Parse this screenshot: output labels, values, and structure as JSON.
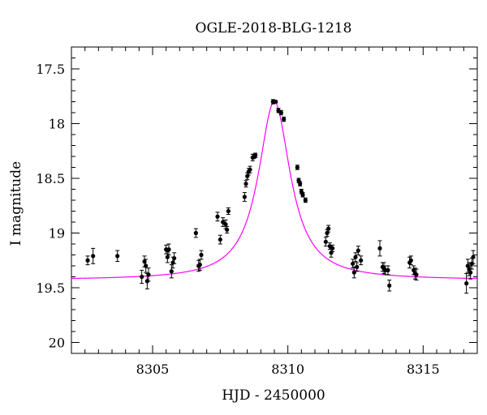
{
  "chart_data": {
    "type": "scatter",
    "title": "OGLE-2018-BLG-1218",
    "xlabel": "HJD - 2450000",
    "ylabel": "I magnitude",
    "xlim": [
      8302.0,
      8317.0
    ],
    "ylim": [
      20.1,
      17.3
    ],
    "y_inverted": true,
    "x_ticks": [
      8305,
      8310,
      8315
    ],
    "x_tick_labels": [
      "8305",
      "8310",
      "8315"
    ],
    "y_ticks": [
      17.5,
      18,
      18.5,
      19,
      19.5,
      20
    ],
    "y_tick_labels": [
      "17.5",
      "18",
      "18.5",
      "19",
      "19.5",
      "20"
    ],
    "grid": false,
    "legend": "none",
    "colors": {
      "data": "#000000",
      "model": "#ff00ff",
      "axes": "#000000"
    },
    "model": {
      "kind": "point-lens microlensing fit",
      "t0": 8309.5,
      "peak_mag": 17.8,
      "baseline_mag": 19.43
    },
    "series": [
      {
        "x": [
          8302.6,
          8302.8,
          8303.7,
          8304.6,
          8304.7,
          8304.75,
          8304.8,
          8304.85,
          8305.5,
          8305.55,
          8305.6,
          8305.7,
          8305.75,
          8305.8,
          8306.6,
          8306.7,
          8306.75,
          8306.8,
          8307.4,
          8307.5,
          8307.6,
          8307.7,
          8307.75,
          8307.8,
          8308.4,
          8308.45,
          8308.5,
          8308.55,
          8308.6,
          8308.7,
          8308.75,
          8308.8,
          8309.45,
          8309.55,
          8309.65,
          8309.75,
          8309.85,
          8310.35,
          8310.4,
          8310.45,
          8310.5,
          8310.55,
          8310.65,
          8311.4,
          8311.45,
          8311.5,
          8311.55,
          8311.6,
          8311.65,
          8312.4,
          8312.45,
          8312.5,
          8312.55,
          8312.6,
          8312.7,
          8313.4,
          8313.5,
          8313.55,
          8313.6,
          8313.7,
          8313.75,
          8314.5,
          8314.55,
          8314.65,
          8314.7,
          8314.75,
          8316.6,
          8316.65,
          8316.7,
          8316.75,
          8316.8,
          8316.85
        ],
        "y": [
          19.25,
          19.21,
          19.21,
          19.4,
          19.26,
          19.3,
          19.44,
          19.38,
          19.15,
          19.22,
          19.15,
          19.35,
          19.27,
          19.23,
          19.0,
          19.3,
          19.29,
          19.2,
          18.85,
          19.06,
          18.9,
          18.92,
          18.97,
          18.8,
          18.67,
          18.55,
          18.48,
          18.44,
          18.42,
          18.31,
          18.3,
          18.29,
          17.8,
          17.8,
          17.88,
          17.9,
          17.96,
          18.4,
          18.52,
          18.55,
          18.62,
          18.65,
          18.7,
          19.08,
          19.0,
          18.96,
          19.12,
          19.18,
          19.14,
          19.28,
          19.36,
          19.22,
          19.31,
          19.16,
          19.25,
          19.14,
          19.31,
          19.32,
          19.34,
          19.34,
          19.48,
          19.27,
          19.25,
          19.34,
          19.37,
          19.38,
          19.46,
          19.3,
          19.33,
          19.36,
          19.28,
          19.22
        ],
        "err": [
          0.04,
          0.07,
          0.05,
          0.06,
          0.05,
          0.06,
          0.07,
          0.06,
          0.04,
          0.05,
          0.05,
          0.06,
          0.05,
          0.05,
          0.04,
          0.05,
          0.05,
          0.04,
          0.04,
          0.04,
          0.04,
          0.04,
          0.03,
          0.03,
          0.04,
          0.03,
          0.03,
          0.03,
          0.03,
          0.03,
          0.02,
          0.02,
          0.02,
          0.01,
          0.02,
          0.02,
          0.02,
          0.02,
          0.02,
          0.02,
          0.02,
          0.02,
          0.02,
          0.04,
          0.03,
          0.03,
          0.03,
          0.04,
          0.03,
          0.04,
          0.05,
          0.04,
          0.04,
          0.04,
          0.04,
          0.07,
          0.04,
          0.05,
          0.04,
          0.04,
          0.05,
          0.05,
          0.04,
          0.04,
          0.05,
          0.05,
          0.09,
          0.06,
          0.06,
          0.06,
          0.05,
          0.06
        ]
      }
    ]
  }
}
